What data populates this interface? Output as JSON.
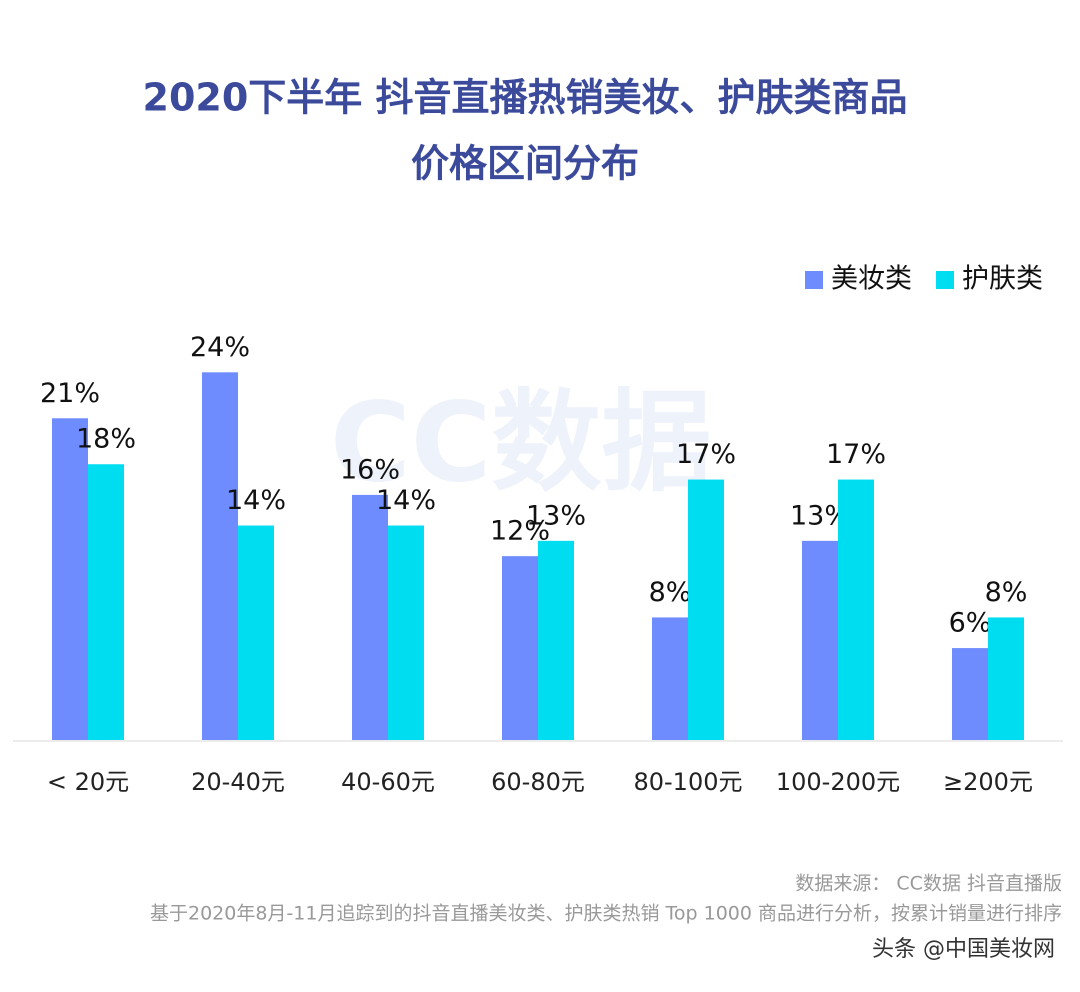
{
  "chart_data": {
    "type": "bar",
    "title": "2020下半年 抖音直播热销美妆、护肤类商品",
    "subtitle": "价格区间分布",
    "categories": [
      "< 20元",
      "20-40元",
      "40-60元",
      "60-80元",
      "80-100元",
      "100-200元",
      "≥200元"
    ],
    "series": [
      {
        "name": "美妆类",
        "color": "#6f8cff",
        "values": [
          21,
          24,
          16,
          12,
          8,
          13,
          6
        ],
        "value_labels": [
          "21%",
          "24%",
          "16%",
          "12%",
          "8%",
          "13%",
          "6%"
        ]
      },
      {
        "name": "护肤类",
        "color": "#00dcf0",
        "values": [
          18,
          14,
          14,
          13,
          17,
          17,
          8
        ],
        "value_labels": [
          "18%",
          "14%",
          "14%",
          "13%",
          "17%",
          "17%",
          "8%"
        ]
      }
    ],
    "ylim": [
      0,
      25
    ],
    "legend": "top-right",
    "watermark": "CC数据",
    "source": "数据来源： CC数据 抖音直播版",
    "note": "基于2020年8月-11月追踪到的抖音直播美妆类、护肤类热销 Top 1000 商品进行分析，按累计销量进行排序",
    "credit": "头条 @中国美妆网"
  }
}
